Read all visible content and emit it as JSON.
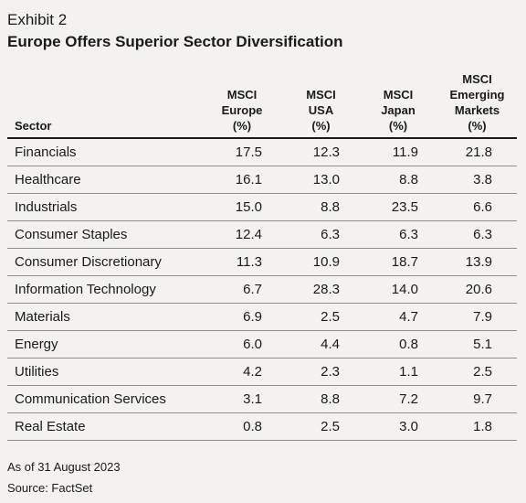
{
  "exhibit_label": "Exhibit 2",
  "title": "Europe Offers Superior Sector Diversification",
  "table": {
    "headers": [
      [
        "Sector"
      ],
      [
        "MSCI",
        "Europe",
        "(%)"
      ],
      [
        "MSCI",
        "USA",
        "(%)"
      ],
      [
        "MSCI",
        "Japan",
        "(%)"
      ],
      [
        "MSCI",
        "Emerging",
        "Markets",
        "(%)"
      ]
    ],
    "rows": [
      [
        "Financials",
        "17.5",
        "12.3",
        "11.9",
        "21.8"
      ],
      [
        "Healthcare",
        "16.1",
        "13.0",
        "8.8",
        "3.8"
      ],
      [
        "Industrials",
        "15.0",
        "8.8",
        "23.5",
        "6.6"
      ],
      [
        "Consumer Staples",
        "12.4",
        "6.3",
        "6.3",
        "6.3"
      ],
      [
        "Consumer Discretionary",
        "11.3",
        "10.9",
        "18.7",
        "13.9"
      ],
      [
        "Information Technology",
        "6.7",
        "28.3",
        "14.0",
        "20.6"
      ],
      [
        "Materials",
        "6.9",
        "2.5",
        "4.7",
        "7.9"
      ],
      [
        "Energy",
        "6.0",
        "4.4",
        "0.8",
        "5.1"
      ],
      [
        "Utilities",
        "4.2",
        "2.3",
        "1.1",
        "2.5"
      ],
      [
        "Communication Services",
        "3.1",
        "8.8",
        "7.2",
        "9.7"
      ],
      [
        "Real Estate",
        "0.8",
        "2.5",
        "3.0",
        "1.8"
      ]
    ]
  },
  "footnotes": {
    "as_of": "As of 31 August 2023",
    "source": "Source: FactSet"
  }
}
